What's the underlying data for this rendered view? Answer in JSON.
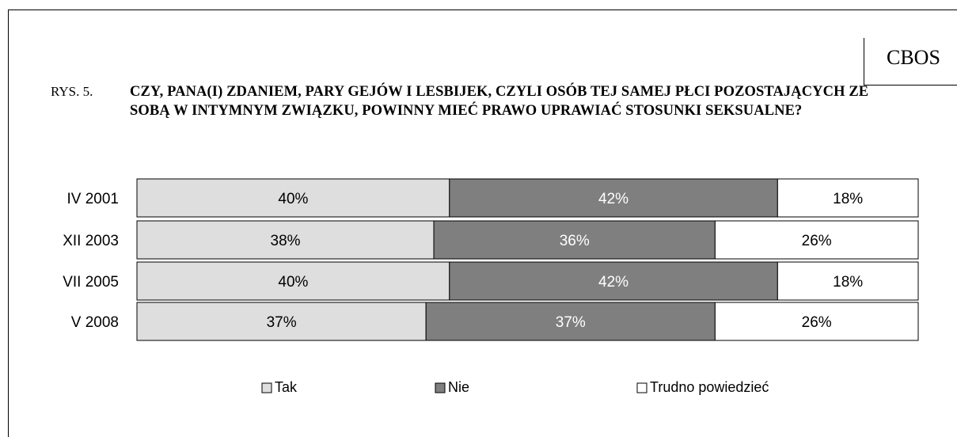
{
  "header": {
    "source": "CBOS",
    "figure_label": "RYS. 5.",
    "question": "CZY, PANA(I) ZDANIEM, PARY GEJÓW I LESBIJEK, CZYLI OSÓB TEJ SAMEJ PŁCI POZOSTAJĄCYCH ZE SOBĄ W INTYMNYM ZWIĄZKU, POWINNY MIEĆ PRAWO UPRAWIAĆ STOSUNKI SEKSUALNE?"
  },
  "chart_data": {
    "type": "bar",
    "orientation": "horizontal",
    "stacked": true,
    "normalized": true,
    "categories": [
      "IV 2001",
      "XII 2003",
      "VII 2005",
      "V 2008"
    ],
    "series": [
      {
        "name": "Tak",
        "values": [
          40,
          38,
          40,
          37
        ],
        "color": "#dedede",
        "label_color": "#000000"
      },
      {
        "name": "Nie",
        "values": [
          42,
          36,
          42,
          37
        ],
        "color": "#7f7f7f",
        "label_color": "#ffffff"
      },
      {
        "name": "Trudno powiedzieć",
        "values": [
          18,
          26,
          18,
          26
        ],
        "color": "#ffffff",
        "label_color": "#000000"
      }
    ],
    "value_suffix": "%",
    "xlim": [
      0,
      100
    ],
    "grid": false,
    "legend_position": "bottom"
  }
}
